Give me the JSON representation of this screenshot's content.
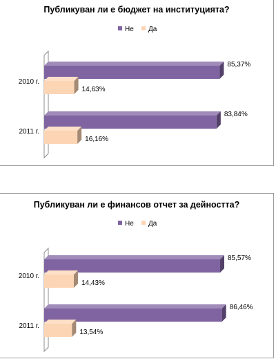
{
  "chart_data": [
    {
      "type": "bar",
      "orientation": "horizontal",
      "style": "3d",
      "title": "Публикуван ли е бюджет на институцията?",
      "categories": [
        "2010 г.",
        "2011 г."
      ],
      "series": [
        {
          "name": "Не",
          "values": [
            85.37,
            83.84
          ],
          "labels": [
            "85,37%",
            "83,84%"
          ],
          "color": "#8064a2"
        },
        {
          "name": "Да",
          "values": [
            14.63,
            16.16
          ],
          "labels": [
            "14,63%",
            "16,16%"
          ],
          "color": "#fcd5b4"
        }
      ],
      "legend": "top",
      "grid": false,
      "xlim": [
        0,
        100
      ]
    },
    {
      "type": "bar",
      "orientation": "horizontal",
      "style": "3d",
      "title": "Публикуван ли е финансов отчет за дейността?",
      "categories": [
        "2010 г.",
        "2011 г."
      ],
      "series": [
        {
          "name": "Не",
          "values": [
            85.57,
            86.46
          ],
          "labels": [
            "85,57%",
            "86,46%"
          ],
          "color": "#8064a2"
        },
        {
          "name": "Да",
          "values": [
            14.43,
            13.54
          ],
          "labels": [
            "14,43%",
            "13,54%"
          ],
          "color": "#fcd5b4"
        }
      ],
      "legend": "top",
      "grid": false,
      "xlim": [
        0,
        100
      ]
    }
  ]
}
